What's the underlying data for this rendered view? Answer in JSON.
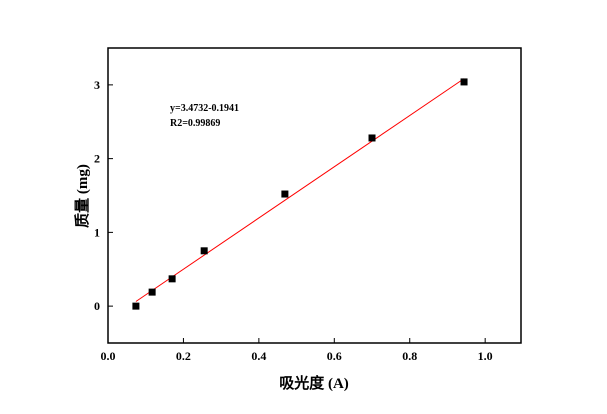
{
  "chart_data": {
    "type": "scatter",
    "title": "",
    "xlabel": "吸光度 (A)",
    "ylabel": "质量 (mg)",
    "xlim": [
      0.0,
      1.095
    ],
    "ylim": [
      -0.5,
      3.5
    ],
    "xticks": [
      0.0,
      0.2,
      0.4,
      0.6,
      0.8,
      1.0
    ],
    "xtick_labels": [
      "0.0",
      "0.2",
      "0.4",
      "0.6",
      "0.8",
      "1.0"
    ],
    "yticks": [
      0,
      1,
      2,
      3
    ],
    "ytick_labels": [
      "0",
      "1",
      "2",
      "3"
    ],
    "grid": false,
    "series": [
      {
        "name": "data",
        "marker": "square",
        "color": "#000000",
        "x": [
          0.074,
          0.117,
          0.17,
          0.255,
          0.469,
          0.7,
          0.944
        ],
        "y": [
          0.0,
          0.19,
          0.37,
          0.75,
          1.52,
          2.28,
          3.04
        ]
      }
    ],
    "fit": {
      "slope": 3.4732,
      "intercept": -0.1941,
      "x_range": [
        0.074,
        0.944
      ],
      "color": "#ff0000"
    },
    "annotations": [
      "y=3.4732-0.1941",
      "R2=0.99869"
    ]
  }
}
